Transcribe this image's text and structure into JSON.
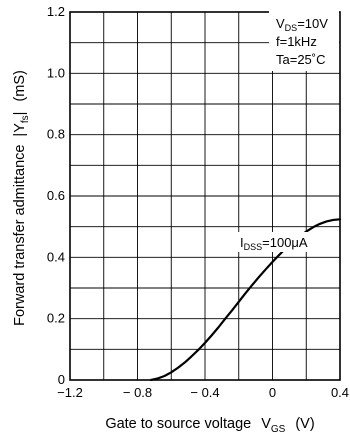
{
  "chart_data": {
    "type": "line",
    "xlabel": {
      "prefix": "Gate to source voltage",
      "symbol": "V",
      "subscript": "GS",
      "unit": "(V)"
    },
    "ylabel": {
      "prefix": "Forward transfer admittance",
      "symbol": "|Y",
      "subscript": "fs",
      "suffix": "|",
      "unit": "(mS)"
    },
    "xlim": [
      -1.2,
      0.4
    ],
    "ylim": [
      0,
      1.2
    ],
    "x_gridlines": [
      -1.2,
      -1.0,
      -0.8,
      -0.6,
      -0.4,
      -0.2,
      0.0,
      0.2,
      0.4
    ],
    "y_gridlines": [
      0,
      0.1,
      0.2,
      0.3,
      0.4,
      0.5,
      0.6,
      0.7,
      0.8,
      0.9,
      1.0,
      1.1,
      1.2
    ],
    "x_tick_labels": [
      {
        "value": -1.2,
        "label": "−1.2"
      },
      {
        "value": -0.8,
        "label": "− 0.8"
      },
      {
        "value": -0.4,
        "label": "− 0.4"
      },
      {
        "value": 0.0,
        "label": "0"
      },
      {
        "value": 0.4,
        "label": "0.4"
      }
    ],
    "y_tick_labels": [
      {
        "value": 0,
        "label": "0"
      },
      {
        "value": 0.2,
        "label": "0.2"
      },
      {
        "value": 0.4,
        "label": "0.4"
      },
      {
        "value": 0.6,
        "label": "0.6"
      },
      {
        "value": 0.8,
        "label": "0.8"
      },
      {
        "value": 1.0,
        "label": "1.0"
      },
      {
        "value": 1.2,
        "label": "1.2"
      }
    ],
    "grid": true,
    "conditions": [
      {
        "symbol": "V",
        "subscript": "DS",
        "rest": "=10V"
      },
      {
        "symbol": "",
        "subscript": "",
        "rest": "f=1kHz"
      },
      {
        "symbol": "",
        "subscript": "",
        "rest": "Ta=25˚C"
      }
    ],
    "series": [
      {
        "label": {
          "symbol": "I",
          "subscript": "DSS",
          "rest": "=100μA"
        },
        "x": [
          -0.72,
          -0.68,
          -0.64,
          -0.6,
          -0.56,
          -0.52,
          -0.48,
          -0.44,
          -0.4,
          -0.36,
          -0.32,
          -0.28,
          -0.24,
          -0.2,
          -0.16,
          -0.12,
          -0.08,
          -0.04,
          0.0,
          0.04,
          0.08,
          0.12,
          0.16,
          0.2,
          0.24,
          0.28,
          0.32,
          0.36,
          0.4
        ],
        "y": [
          0.0,
          0.005,
          0.013,
          0.025,
          0.04,
          0.057,
          0.077,
          0.098,
          0.121,
          0.146,
          0.172,
          0.2,
          0.227,
          0.255,
          0.283,
          0.31,
          0.336,
          0.361,
          0.385,
          0.408,
          0.43,
          0.45,
          0.468,
          0.484,
          0.498,
          0.509,
          0.517,
          0.522,
          0.524
        ]
      }
    ]
  }
}
